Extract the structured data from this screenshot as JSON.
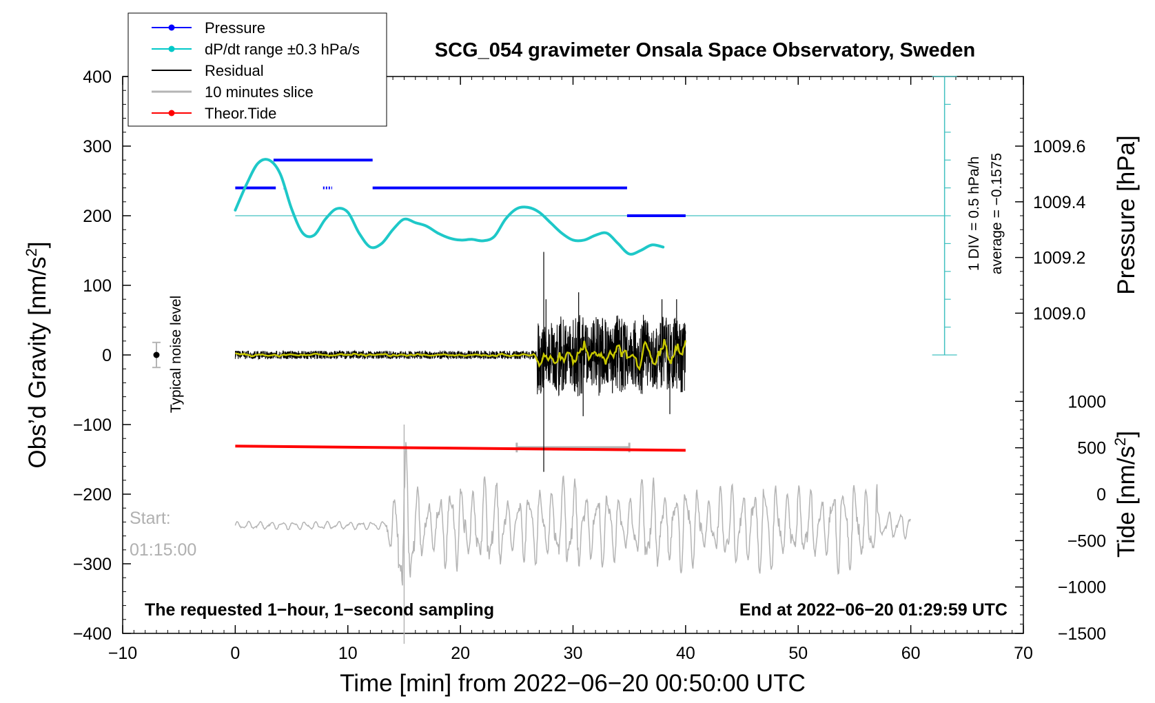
{
  "chart_data": {
    "type": "line",
    "title": "SCG_054 gravimeter Onsala Space Observatory, Sweden",
    "xlabel": "Time [min] from 2022−06−20 00:50:00 UTC",
    "ylabel_left_pre": "Obs’d Gravity [nm/s",
    "ylabel_left_sup": "2",
    "ylabel_left_post": "]",
    "ylabel_right_upper": "Pressure [hPa]",
    "ylabel_right_lower_pre": "Tide [nm/s",
    "ylabel_right_lower_sup": "2",
    "ylabel_right_lower_post": "]",
    "xlim": [
      -10,
      70
    ],
    "ylim": [
      -400,
      400
    ],
    "x_ticks": [
      {
        "v": -10,
        "label": "−10"
      },
      {
        "v": 0,
        "label": "0"
      },
      {
        "v": 10,
        "label": "10"
      },
      {
        "v": 20,
        "label": "20"
      },
      {
        "v": 30,
        "label": "30"
      },
      {
        "v": 40,
        "label": "40"
      },
      {
        "v": 50,
        "label": "50"
      },
      {
        "v": 60,
        "label": "60"
      },
      {
        "v": 70,
        "label": "70"
      }
    ],
    "y_ticks": [
      {
        "v": 400,
        "label": "400"
      },
      {
        "v": 300,
        "label": "300"
      },
      {
        "v": 200,
        "label": "200"
      },
      {
        "v": 100,
        "label": "100"
      },
      {
        "v": 0,
        "label": "0"
      },
      {
        "v": -100,
        "label": "−100"
      },
      {
        "v": -200,
        "label": "−200"
      },
      {
        "v": -300,
        "label": "−300"
      },
      {
        "v": -400,
        "label": "−400"
      }
    ],
    "pressure_axis": {
      "ticks": [
        {
          "v": 1009.0,
          "label": "1009.0"
        },
        {
          "v": 1009.2,
          "label": "1009.2"
        },
        {
          "v": 1009.4,
          "label": "1009.4"
        },
        {
          "v": 1009.6,
          "label": "1009.6"
        }
      ],
      "ref_value": 1009.6,
      "ref_gravity": 300,
      "gravity_per_hpa": 400
    },
    "tide_axis": {
      "ticks": [
        {
          "v": 1000,
          "label": "1000"
        },
        {
          "v": 500,
          "label": "500"
        },
        {
          "v": 0,
          "label": "0"
        },
        {
          "v": -500,
          "label": "−500"
        },
        {
          "v": -1000,
          "label": "−1000"
        },
        {
          "v": -1500,
          "label": "−1500"
        }
      ],
      "ref_value": -1500,
      "ref_gravity": -400,
      "gravity_per_unit": 0.133333
    },
    "legend": [
      {
        "label": "Pressure",
        "color": "#0000ff",
        "marker": true
      },
      {
        "label": "dP/dt range ±0.3 hPa/s",
        "color": "#00c8c8",
        "marker": true
      },
      {
        "label": "Residual",
        "color": "#000000",
        "marker": false
      },
      {
        "label": "10 minutes slice",
        "color": "#b4b4b4",
        "marker": false
      },
      {
        "label": "Theor.Tide",
        "color": "#ff0000",
        "marker": true
      }
    ],
    "colors": {
      "pressure": "#0000ff",
      "dpdt": "#1ec8c8",
      "residual": "#000000",
      "residual_smooth": "#c8c800",
      "slice": "#b4b4b4",
      "tide": "#ff0000",
      "scale_bar": "#40c0c0"
    },
    "series": {
      "pressure_segments": [
        {
          "x0": 0,
          "x1": 3.6,
          "y": 240
        },
        {
          "x0": 3.4,
          "x1": 12.2,
          "y": 280
        },
        {
          "x0": 4.3,
          "x1": 4.5,
          "y": 240
        },
        {
          "x0": 7.8,
          "x1": 8.6,
          "y": 240
        },
        {
          "x0": 12.2,
          "x1": 34.8,
          "y": 240
        },
        {
          "x0": 34.8,
          "x1": 40,
          "y": 200
        }
      ],
      "dpdt_ref_y": 200,
      "dpdt": {
        "x": [
          0,
          1,
          2,
          3,
          4,
          5,
          6,
          7,
          8,
          9,
          10,
          11,
          12,
          13,
          14,
          15,
          16,
          17,
          18,
          19,
          20,
          21,
          22,
          23,
          24,
          25,
          26,
          27,
          28,
          29,
          30,
          31,
          32,
          33,
          34,
          35,
          36,
          37,
          38
        ],
        "y": [
          208,
          245,
          275,
          280,
          260,
          210,
          175,
          172,
          195,
          210,
          205,
          175,
          155,
          160,
          180,
          195,
          190,
          185,
          175,
          168,
          165,
          166,
          164,
          170,
          195,
          210,
          212,
          205,
          190,
          175,
          165,
          165,
          172,
          175,
          160,
          145,
          150,
          158,
          155
        ]
      },
      "tide": {
        "x": [
          0,
          40
        ],
        "y": [
          -131,
          -137
        ]
      },
      "slice_bar": {
        "x0": 25,
        "x1": 35,
        "y": -133
      },
      "noise_level": {
        "x": -7,
        "y": 0,
        "err": 18
      }
    },
    "annotations": {
      "noise_label": "Typical noise level",
      "scale_div": "1 DIV = 0.5 hPa/h",
      "average": "average = −0.1575",
      "start_label": "Start:",
      "start_time": "01:15:00",
      "bottom_left": "The requested 1−hour, 1−second sampling",
      "bottom_right": "End at 2022−06−20 01:29:59 UTC"
    }
  }
}
